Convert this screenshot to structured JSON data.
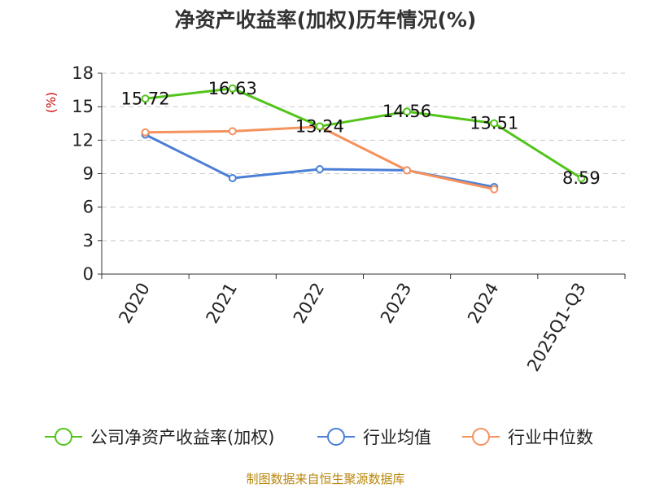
{
  "chart_data": {
    "type": "line",
    "title": "净资产收益率(加权)历年情况(%)",
    "ylabel": "(%)",
    "categories": [
      "2020",
      "2021",
      "2022",
      "2023",
      "2024",
      "2025Q1-Q3"
    ],
    "ylim": [
      0,
      18
    ],
    "yticks": [
      0,
      3,
      6,
      9,
      12,
      15,
      18
    ],
    "grid": true,
    "legend_position": "bottom",
    "series": [
      {
        "name": "公司净资产收益率(加权)",
        "color": "#52c41a",
        "values": [
          15.72,
          16.63,
          13.24,
          14.56,
          13.51,
          8.59
        ],
        "labels": [
          "15.72",
          "16.63",
          "13.24",
          "14.56",
          "13.51",
          "8.59"
        ]
      },
      {
        "name": "行业均值",
        "color": "#4a7fd6",
        "values": [
          12.5,
          8.6,
          9.4,
          9.3,
          7.8,
          null
        ]
      },
      {
        "name": "行业中位数",
        "color": "#f5925e",
        "values": [
          12.7,
          12.8,
          13.2,
          9.3,
          7.6,
          null
        ]
      }
    ]
  },
  "footer": {
    "source": "制图数据来自恒生聚源数据库"
  }
}
